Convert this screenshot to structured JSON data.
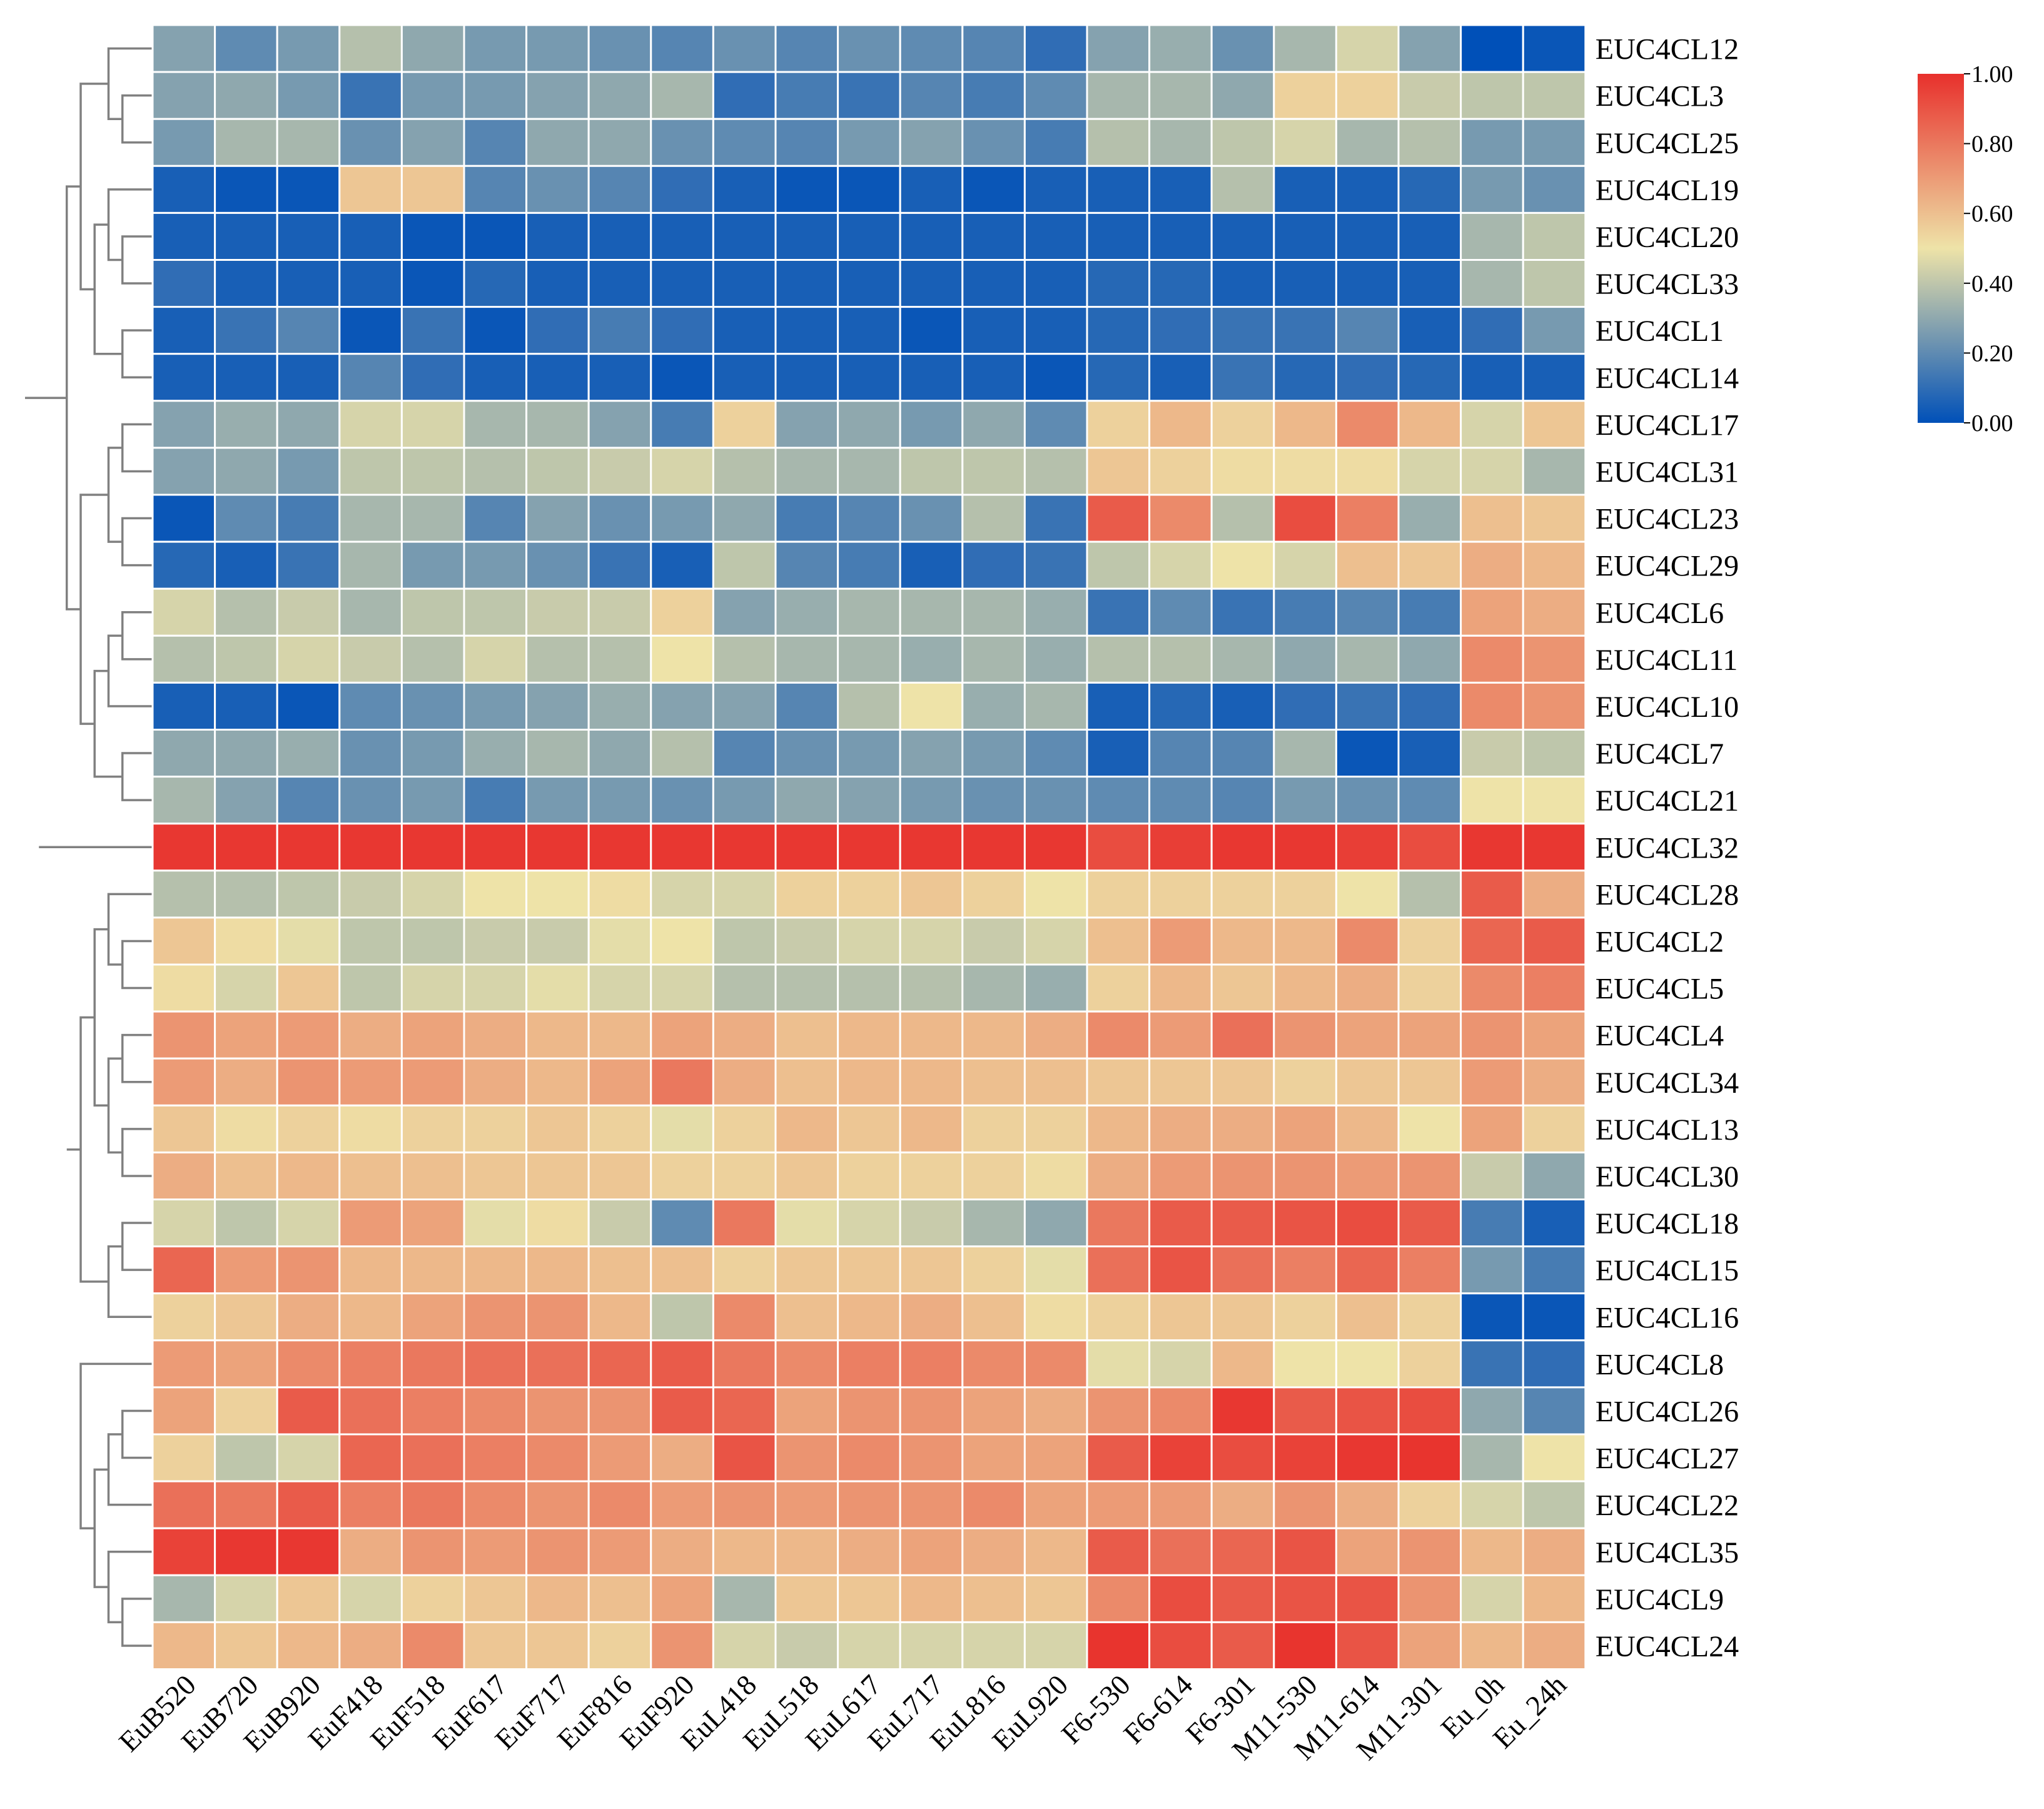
{
  "chart_data": {
    "type": "heatmap",
    "title": "",
    "columns": [
      "EuB520",
      "EuB720",
      "EuB920",
      "EuF418",
      "EuF518",
      "EuF617",
      "EuF717",
      "EuF816",
      "EuF920",
      "EuL418",
      "EuL518",
      "EuL617",
      "EuL717",
      "EuL816",
      "EuL920",
      "F6-530",
      "F6-614",
      "F6-301",
      "M11-530",
      "M11-614",
      "M11-301",
      "Eu_0h",
      "Eu_24h"
    ],
    "rows": [
      "EUC4CL12",
      "EUC4CL3",
      "EUC4CL25",
      "EUC4CL19",
      "EUC4CL20",
      "EUC4CL33",
      "EUC4CL1",
      "EUC4CL14",
      "EUC4CL17",
      "EUC4CL31",
      "EUC4CL23",
      "EUC4CL29",
      "EUC4CL6",
      "EUC4CL11",
      "EUC4CL10",
      "EUC4CL7",
      "EUC4CL21",
      "EUC4CL32",
      "EUC4CL28",
      "EUC4CL2",
      "EUC4CL5",
      "EUC4CL4",
      "EUC4CL34",
      "EUC4CL13",
      "EUC4CL30",
      "EUC4CL18",
      "EUC4CL15",
      "EUC4CL16",
      "EUC4CL8",
      "EUC4CL26",
      "EUC4CL27",
      "EUC4CL22",
      "EUC4CL35",
      "EUC4CL9",
      "EUC4CL24"
    ],
    "values": [
      [
        0.28,
        0.2,
        0.25,
        0.38,
        0.3,
        0.25,
        0.25,
        0.22,
        0.18,
        0.22,
        0.18,
        0.22,
        0.2,
        0.18,
        0.1,
        0.28,
        0.32,
        0.22,
        0.35,
        0.45,
        0.28,
        0.0,
        0.02
      ],
      [
        0.28,
        0.3,
        0.25,
        0.12,
        0.25,
        0.25,
        0.28,
        0.3,
        0.35,
        0.1,
        0.15,
        0.12,
        0.18,
        0.15,
        0.2,
        0.35,
        0.35,
        0.3,
        0.55,
        0.55,
        0.42,
        0.4,
        0.4
      ],
      [
        0.25,
        0.35,
        0.35,
        0.22,
        0.28,
        0.18,
        0.3,
        0.3,
        0.22,
        0.2,
        0.18,
        0.25,
        0.28,
        0.22,
        0.15,
        0.38,
        0.35,
        0.4,
        0.45,
        0.35,
        0.38,
        0.25,
        0.25
      ],
      [
        0.05,
        0.02,
        0.02,
        0.58,
        0.58,
        0.18,
        0.22,
        0.18,
        0.1,
        0.05,
        0.02,
        0.02,
        0.05,
        0.02,
        0.05,
        0.05,
        0.05,
        0.38,
        0.05,
        0.05,
        0.08,
        0.25,
        0.22
      ],
      [
        0.05,
        0.05,
        0.05,
        0.05,
        0.02,
        0.02,
        0.05,
        0.05,
        0.05,
        0.05,
        0.05,
        0.05,
        0.05,
        0.05,
        0.05,
        0.05,
        0.05,
        0.05,
        0.05,
        0.05,
        0.05,
        0.35,
        0.4
      ],
      [
        0.1,
        0.05,
        0.05,
        0.05,
        0.02,
        0.08,
        0.05,
        0.05,
        0.05,
        0.05,
        0.05,
        0.05,
        0.05,
        0.05,
        0.05,
        0.08,
        0.08,
        0.05,
        0.05,
        0.05,
        0.05,
        0.35,
        0.4
      ],
      [
        0.05,
        0.12,
        0.18,
        0.02,
        0.12,
        0.02,
        0.1,
        0.15,
        0.1,
        0.05,
        0.05,
        0.05,
        0.02,
        0.05,
        0.05,
        0.08,
        0.1,
        0.12,
        0.12,
        0.18,
        0.05,
        0.1,
        0.25
      ],
      [
        0.05,
        0.05,
        0.05,
        0.18,
        0.1,
        0.05,
        0.05,
        0.05,
        0.02,
        0.05,
        0.05,
        0.05,
        0.05,
        0.05,
        0.02,
        0.08,
        0.05,
        0.12,
        0.08,
        0.1,
        0.08,
        0.05,
        0.05
      ],
      [
        0.28,
        0.32,
        0.3,
        0.45,
        0.45,
        0.35,
        0.35,
        0.28,
        0.15,
        0.55,
        0.28,
        0.3,
        0.25,
        0.3,
        0.2,
        0.55,
        0.62,
        0.55,
        0.62,
        0.75,
        0.62,
        0.45,
        0.58
      ],
      [
        0.28,
        0.3,
        0.25,
        0.4,
        0.4,
        0.38,
        0.4,
        0.42,
        0.45,
        0.38,
        0.35,
        0.35,
        0.4,
        0.4,
        0.38,
        0.58,
        0.55,
        0.52,
        0.52,
        0.52,
        0.45,
        0.45,
        0.35
      ],
      [
        0.02,
        0.2,
        0.15,
        0.35,
        0.35,
        0.18,
        0.28,
        0.22,
        0.25,
        0.3,
        0.15,
        0.18,
        0.22,
        0.38,
        0.12,
        0.88,
        0.75,
        0.38,
        0.92,
        0.78,
        0.32,
        0.6,
        0.58
      ],
      [
        0.08,
        0.05,
        0.12,
        0.35,
        0.25,
        0.25,
        0.22,
        0.12,
        0.05,
        0.4,
        0.18,
        0.15,
        0.05,
        0.1,
        0.12,
        0.4,
        0.45,
        0.5,
        0.45,
        0.6,
        0.58,
        0.65,
        0.62
      ],
      [
        0.45,
        0.38,
        0.42,
        0.35,
        0.4,
        0.4,
        0.42,
        0.42,
        0.55,
        0.28,
        0.32,
        0.35,
        0.35,
        0.35,
        0.32,
        0.12,
        0.2,
        0.12,
        0.15,
        0.18,
        0.15,
        0.68,
        0.65
      ],
      [
        0.38,
        0.4,
        0.45,
        0.42,
        0.38,
        0.45,
        0.38,
        0.38,
        0.5,
        0.38,
        0.35,
        0.35,
        0.32,
        0.35,
        0.32,
        0.38,
        0.38,
        0.35,
        0.3,
        0.35,
        0.3,
        0.75,
        0.72
      ],
      [
        0.05,
        0.05,
        0.02,
        0.2,
        0.22,
        0.25,
        0.28,
        0.32,
        0.28,
        0.28,
        0.18,
        0.38,
        0.5,
        0.32,
        0.35,
        0.05,
        0.08,
        0.05,
        0.1,
        0.12,
        0.1,
        0.75,
        0.72
      ],
      [
        0.3,
        0.3,
        0.32,
        0.22,
        0.25,
        0.32,
        0.35,
        0.3,
        0.38,
        0.18,
        0.22,
        0.25,
        0.28,
        0.25,
        0.2,
        0.05,
        0.18,
        0.18,
        0.35,
        0.02,
        0.05,
        0.42,
        0.4
      ],
      [
        0.35,
        0.28,
        0.18,
        0.22,
        0.25,
        0.15,
        0.25,
        0.25,
        0.22,
        0.25,
        0.3,
        0.28,
        0.25,
        0.22,
        0.22,
        0.2,
        0.2,
        0.18,
        0.25,
        0.22,
        0.2,
        0.5,
        0.5
      ],
      [
        0.98,
        0.98,
        0.98,
        0.98,
        0.98,
        0.98,
        0.98,
        0.98,
        0.98,
        0.98,
        0.98,
        0.98,
        0.98,
        0.98,
        0.98,
        0.92,
        0.96,
        0.98,
        0.98,
        0.96,
        0.92,
        0.98,
        0.98
      ],
      [
        0.38,
        0.38,
        0.4,
        0.42,
        0.45,
        0.5,
        0.5,
        0.52,
        0.45,
        0.45,
        0.55,
        0.55,
        0.58,
        0.55,
        0.5,
        0.55,
        0.55,
        0.55,
        0.55,
        0.5,
        0.38,
        0.88,
        0.65
      ],
      [
        0.58,
        0.52,
        0.48,
        0.4,
        0.4,
        0.42,
        0.42,
        0.48,
        0.5,
        0.4,
        0.42,
        0.45,
        0.45,
        0.42,
        0.45,
        0.6,
        0.7,
        0.62,
        0.62,
        0.75,
        0.55,
        0.85,
        0.88
      ],
      [
        0.52,
        0.45,
        0.58,
        0.4,
        0.45,
        0.45,
        0.48,
        0.45,
        0.45,
        0.38,
        0.38,
        0.38,
        0.38,
        0.35,
        0.32,
        0.55,
        0.62,
        0.58,
        0.62,
        0.65,
        0.55,
        0.75,
        0.78
      ],
      [
        0.72,
        0.68,
        0.7,
        0.65,
        0.68,
        0.65,
        0.62,
        0.62,
        0.68,
        0.65,
        0.6,
        0.62,
        0.62,
        0.62,
        0.65,
        0.75,
        0.7,
        0.82,
        0.72,
        0.68,
        0.68,
        0.72,
        0.68
      ],
      [
        0.7,
        0.65,
        0.72,
        0.7,
        0.7,
        0.65,
        0.62,
        0.68,
        0.8,
        0.65,
        0.6,
        0.62,
        0.62,
        0.6,
        0.6,
        0.58,
        0.58,
        0.58,
        0.55,
        0.58,
        0.58,
        0.7,
        0.65
      ],
      [
        0.58,
        0.52,
        0.55,
        0.52,
        0.55,
        0.55,
        0.58,
        0.55,
        0.48,
        0.55,
        0.62,
        0.58,
        0.62,
        0.55,
        0.55,
        0.62,
        0.65,
        0.65,
        0.68,
        0.62,
        0.5,
        0.68,
        0.55
      ],
      [
        0.65,
        0.6,
        0.62,
        0.6,
        0.6,
        0.58,
        0.58,
        0.58,
        0.55,
        0.55,
        0.58,
        0.55,
        0.55,
        0.55,
        0.52,
        0.65,
        0.7,
        0.72,
        0.72,
        0.7,
        0.72,
        0.42,
        0.3
      ],
      [
        0.45,
        0.4,
        0.45,
        0.7,
        0.68,
        0.48,
        0.52,
        0.42,
        0.2,
        0.8,
        0.48,
        0.45,
        0.42,
        0.35,
        0.3,
        0.8,
        0.88,
        0.88,
        0.9,
        0.92,
        0.88,
        0.15,
        0.05
      ],
      [
        0.85,
        0.7,
        0.72,
        0.62,
        0.62,
        0.62,
        0.62,
        0.6,
        0.6,
        0.55,
        0.58,
        0.58,
        0.58,
        0.55,
        0.48,
        0.82,
        0.9,
        0.82,
        0.78,
        0.85,
        0.78,
        0.25,
        0.15
      ],
      [
        0.55,
        0.58,
        0.65,
        0.62,
        0.68,
        0.72,
        0.72,
        0.62,
        0.4,
        0.75,
        0.6,
        0.62,
        0.65,
        0.6,
        0.52,
        0.55,
        0.58,
        0.58,
        0.55,
        0.6,
        0.55,
        0.02,
        0.02
      ],
      [
        0.7,
        0.68,
        0.75,
        0.78,
        0.8,
        0.82,
        0.82,
        0.85,
        0.88,
        0.8,
        0.75,
        0.78,
        0.78,
        0.75,
        0.75,
        0.48,
        0.45,
        0.62,
        0.5,
        0.5,
        0.55,
        0.12,
        0.1
      ],
      [
        0.68,
        0.55,
        0.88,
        0.82,
        0.78,
        0.75,
        0.72,
        0.72,
        0.88,
        0.85,
        0.68,
        0.72,
        0.72,
        0.68,
        0.65,
        0.72,
        0.75,
        0.98,
        0.88,
        0.9,
        0.92,
        0.3,
        0.18
      ],
      [
        0.55,
        0.4,
        0.45,
        0.85,
        0.82,
        0.78,
        0.75,
        0.7,
        0.65,
        0.9,
        0.72,
        0.75,
        0.72,
        0.68,
        0.68,
        0.88,
        0.95,
        0.92,
        0.95,
        0.98,
        0.99,
        0.35,
        0.5
      ],
      [
        0.82,
        0.8,
        0.88,
        0.78,
        0.8,
        0.75,
        0.72,
        0.75,
        0.7,
        0.72,
        0.7,
        0.72,
        0.72,
        0.75,
        0.68,
        0.7,
        0.7,
        0.65,
        0.72,
        0.65,
        0.55,
        0.45,
        0.4
      ],
      [
        0.95,
        0.98,
        0.98,
        0.65,
        0.72,
        0.7,
        0.72,
        0.7,
        0.65,
        0.62,
        0.62,
        0.65,
        0.68,
        0.65,
        0.62,
        0.88,
        0.82,
        0.85,
        0.9,
        0.68,
        0.72,
        0.62,
        0.65
      ],
      [
        0.35,
        0.45,
        0.58,
        0.45,
        0.55,
        0.58,
        0.62,
        0.6,
        0.68,
        0.35,
        0.58,
        0.58,
        0.62,
        0.6,
        0.58,
        0.75,
        0.92,
        0.88,
        0.9,
        0.9,
        0.72,
        0.45,
        0.62
      ],
      [
        0.62,
        0.58,
        0.62,
        0.65,
        0.75,
        0.58,
        0.58,
        0.55,
        0.72,
        0.45,
        0.42,
        0.45,
        0.45,
        0.45,
        0.45,
        0.99,
        0.92,
        0.88,
        0.99,
        0.9,
        0.68,
        0.62,
        0.65
      ]
    ],
    "colorbar": {
      "range": [
        0,
        1
      ],
      "ticks": [
        "0.00",
        "0.20",
        "0.40",
        "0.60",
        "0.80",
        "1.00"
      ],
      "low_color": "#0050b8",
      "mid_color": "#eee3a8",
      "high_color": "#e8302c",
      "position": "top-right"
    },
    "dendrogram": "left"
  }
}
